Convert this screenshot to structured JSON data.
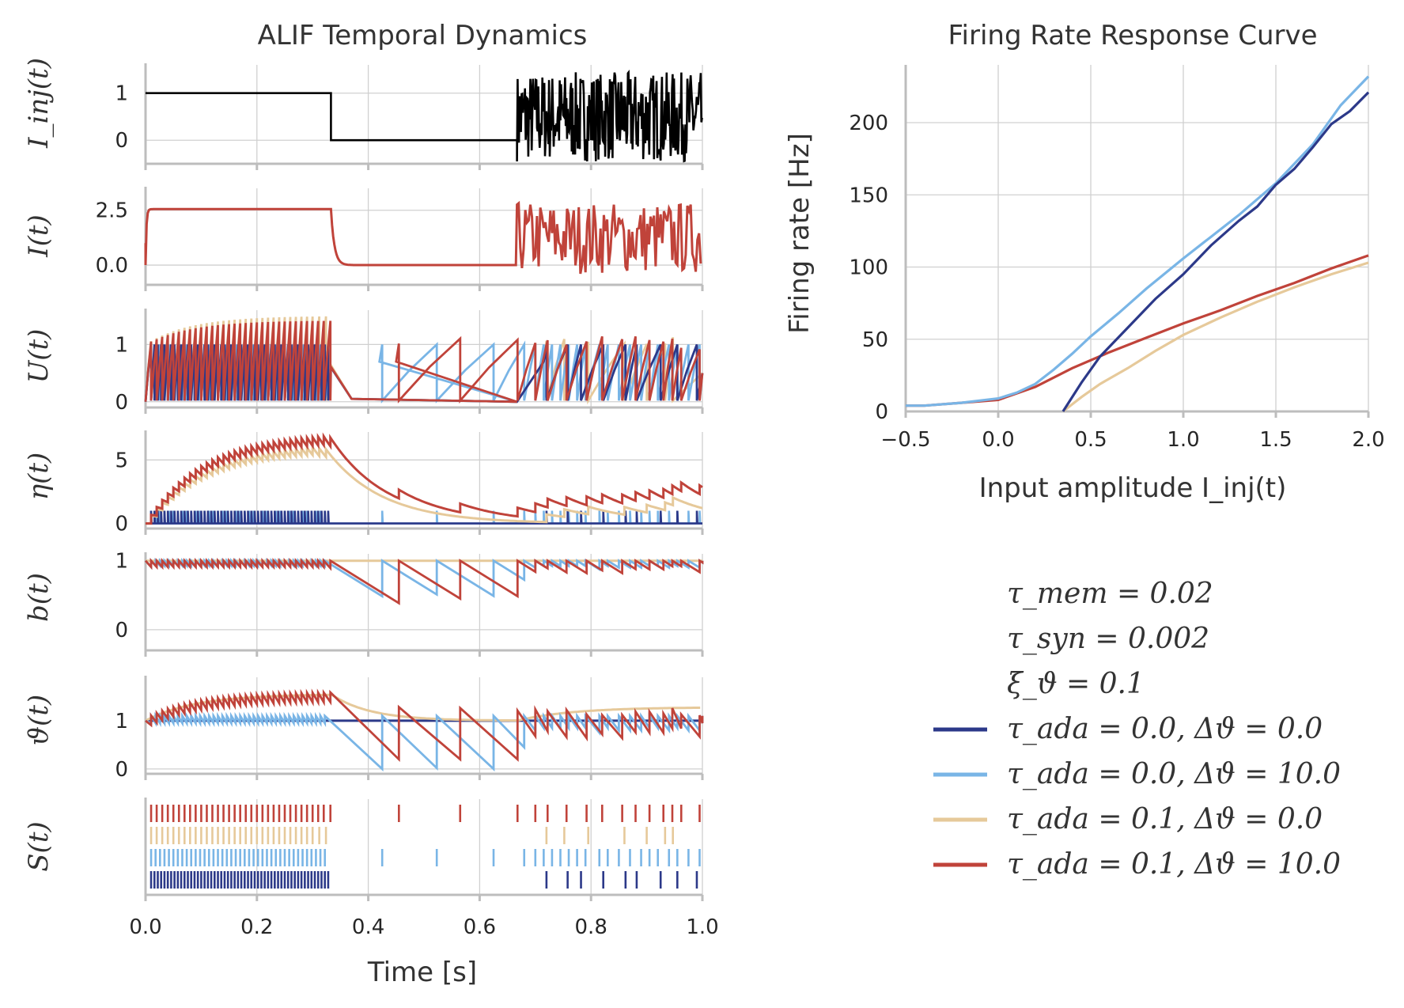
{
  "colors": {
    "blue_dark": "#2c3989",
    "blue_light": "#79b5e6",
    "tan": "#e6c99a",
    "red": "#c0433a",
    "black": "#000000"
  },
  "chart_data": [
    {
      "type": "line",
      "id": "temporal",
      "title": "ALIF Temporal Dynamics",
      "xlabel": "Time [s]",
      "xlim": [
        0.0,
        1.0
      ],
      "xticks": [
        "0.0",
        "0.2",
        "0.4",
        "0.6",
        "0.8",
        "1.0"
      ],
      "panels": [
        {
          "ylabel": "I_inj(t)",
          "ylim": [
            -0.5,
            1.6
          ],
          "yticks": [
            0,
            1
          ],
          "yticklabels": [
            "0",
            "1"
          ]
        },
        {
          "ylabel": "I(t)",
          "ylim": [
            -0.9,
            3.5
          ],
          "yticks": [
            0.0,
            2.5
          ],
          "yticklabels": [
            "0.0",
            "2.5"
          ]
        },
        {
          "ylabel": "U(t)",
          "ylim": [
            -0.1,
            1.6
          ],
          "yticks": [
            0,
            1
          ],
          "yticklabels": [
            "0",
            "1"
          ]
        },
        {
          "ylabel": "η(t)",
          "ylim": [
            -0.4,
            7.2
          ],
          "yticks": [
            0,
            5
          ],
          "yticklabels": [
            "0",
            "5"
          ]
        },
        {
          "ylabel": "b(t)",
          "ylim": [
            -0.3,
            1.1
          ],
          "yticks": [
            0,
            1
          ],
          "yticklabels": [
            "0",
            "1"
          ]
        },
        {
          "ylabel": "ϑ(t)",
          "ylim": [
            -0.1,
            1.9
          ],
          "yticks": [
            0,
            1
          ],
          "yticklabels": [
            "0",
            "1"
          ]
        },
        {
          "ylabel": "S(t)",
          "ylim": [
            0,
            1
          ],
          "yticks": [],
          "yticklabels": []
        }
      ],
      "input_segments": [
        {
          "t_start": 0.0,
          "t_end": 0.333,
          "kind": "constant",
          "value": 1.0
        },
        {
          "t_start": 0.333,
          "t_end": 0.667,
          "kind": "constant",
          "value": 0.0
        },
        {
          "t_start": 0.667,
          "t_end": 1.0,
          "kind": "noise",
          "value_range": [
            -0.45,
            1.45
          ]
        }
      ],
      "current_plateau": 2.55,
      "spike_trains": [
        {
          "series": "τ_ada = 0.1, Δϑ = 10.0",
          "times": [
            0.01,
            0.02,
            0.03,
            0.04,
            0.05,
            0.06,
            0.07,
            0.08,
            0.09,
            0.1,
            0.11,
            0.12,
            0.13,
            0.14,
            0.15,
            0.16,
            0.17,
            0.18,
            0.19,
            0.2,
            0.21,
            0.22,
            0.23,
            0.24,
            0.25,
            0.26,
            0.27,
            0.28,
            0.29,
            0.3,
            0.31,
            0.32,
            0.332,
            0.455,
            0.565,
            0.668,
            0.7,
            0.722,
            0.756,
            0.792,
            0.82,
            0.856,
            0.88,
            0.905,
            0.93,
            0.946,
            0.962,
            0.995
          ]
        },
        {
          "series": "τ_ada = 0.1, Δϑ = 0.0",
          "times": [
            0.01,
            0.02,
            0.03,
            0.04,
            0.05,
            0.06,
            0.07,
            0.08,
            0.09,
            0.1,
            0.11,
            0.12,
            0.13,
            0.14,
            0.15,
            0.16,
            0.17,
            0.18,
            0.19,
            0.2,
            0.21,
            0.22,
            0.23,
            0.24,
            0.25,
            0.26,
            0.27,
            0.28,
            0.29,
            0.3,
            0.312,
            0.324,
            0.72,
            0.752,
            0.795,
            0.86,
            0.9,
            0.933,
            0.947
          ]
        },
        {
          "series": "τ_ada = 0.0, Δϑ = 10.0",
          "times": [
            0.01,
            0.018,
            0.026,
            0.034,
            0.042,
            0.05,
            0.058,
            0.066,
            0.074,
            0.082,
            0.09,
            0.098,
            0.106,
            0.114,
            0.122,
            0.13,
            0.138,
            0.146,
            0.154,
            0.162,
            0.17,
            0.178,
            0.186,
            0.194,
            0.202,
            0.21,
            0.218,
            0.226,
            0.234,
            0.242,
            0.25,
            0.258,
            0.266,
            0.274,
            0.282,
            0.29,
            0.298,
            0.306,
            0.314,
            0.322,
            0.425,
            0.523,
            0.625,
            0.68,
            0.7,
            0.715,
            0.73,
            0.745,
            0.76,
            0.775,
            0.79,
            0.815,
            0.83,
            0.85,
            0.87,
            0.89,
            0.905,
            0.92,
            0.94,
            0.955,
            0.975,
            0.995
          ]
        },
        {
          "series": "τ_ada = 0.0, Δϑ = 0.0",
          "times": [
            0.01,
            0.016,
            0.022,
            0.028,
            0.034,
            0.04,
            0.046,
            0.052,
            0.058,
            0.064,
            0.07,
            0.076,
            0.082,
            0.088,
            0.094,
            0.1,
            0.106,
            0.112,
            0.118,
            0.124,
            0.13,
            0.136,
            0.142,
            0.148,
            0.154,
            0.16,
            0.166,
            0.172,
            0.178,
            0.184,
            0.19,
            0.196,
            0.202,
            0.208,
            0.214,
            0.22,
            0.226,
            0.232,
            0.238,
            0.244,
            0.25,
            0.256,
            0.262,
            0.268,
            0.274,
            0.28,
            0.286,
            0.292,
            0.298,
            0.304,
            0.31,
            0.316,
            0.322,
            0.328,
            0.72,
            0.758,
            0.782,
            0.822,
            0.862,
            0.882,
            0.925,
            0.955,
            0.99
          ]
        }
      ]
    },
    {
      "type": "line",
      "id": "rate",
      "title": "Firing Rate Response Curve",
      "xlabel": "Input amplitude I_inj(t)",
      "ylabel": "Firing rate [Hz]",
      "xlim": [
        -0.5,
        2.0
      ],
      "ylim": [
        0,
        240
      ],
      "xticks": [
        -0.5,
        0.0,
        0.5,
        1.0,
        1.5,
        2.0
      ],
      "xticklabels": [
        "−0.5",
        "0.0",
        "0.5",
        "1.0",
        "1.5",
        "2.0"
      ],
      "yticks": [
        0,
        50,
        100,
        150,
        200
      ],
      "yticklabels": [
        "0",
        "50",
        "100",
        "150",
        "200"
      ],
      "series": [
        {
          "name": "τ_ada = 0.0, Δϑ = 0.0",
          "color": "#2c3989",
          "x": [
            0.35,
            0.45,
            0.55,
            0.7,
            0.85,
            1.0,
            1.15,
            1.3,
            1.4,
            1.5,
            1.6,
            1.7,
            1.8,
            1.9,
            2.0
          ],
          "y": [
            0,
            20,
            38,
            58,
            78,
            95,
            115,
            132,
            142,
            157,
            168,
            183,
            199,
            208,
            221
          ]
        },
        {
          "name": "τ_ada = 0.0, Δϑ = 10.0",
          "color": "#79b5e6",
          "x": [
            -0.5,
            -0.4,
            -0.2,
            0.0,
            0.1,
            0.2,
            0.3,
            0.4,
            0.5,
            0.65,
            0.8,
            1.0,
            1.15,
            1.3,
            1.5,
            1.7,
            1.85,
            2.0
          ],
          "y": [
            4,
            4,
            6,
            9,
            13,
            19,
            29,
            40,
            52,
            68,
            85,
            106,
            121,
            136,
            158,
            185,
            212,
            232
          ]
        },
        {
          "name": "τ_ada = 0.1, Δϑ = 0.0",
          "color": "#e6c99a",
          "x": [
            0.35,
            0.45,
            0.55,
            0.7,
            0.85,
            1.0,
            1.2,
            1.4,
            1.6,
            1.8,
            2.0
          ],
          "y": [
            0,
            10,
            19,
            30,
            42,
            53,
            65,
            76,
            86,
            95,
            103
          ]
        },
        {
          "name": "τ_ada = 0.1, Δϑ = 10.0",
          "color": "#c0433a",
          "x": [
            -0.5,
            -0.4,
            -0.2,
            0.0,
            0.2,
            0.4,
            0.6,
            0.8,
            1.0,
            1.2,
            1.4,
            1.6,
            1.8,
            2.0
          ],
          "y": [
            4,
            4,
            6,
            8,
            17,
            30,
            41,
            51,
            61,
            70,
            80,
            89,
            99,
            108
          ]
        }
      ]
    }
  ],
  "legend": {
    "params": [
      "τ_mem = 0.02",
      "τ_syn = 0.002",
      "ξ_ϑ = 0.1"
    ],
    "entries": [
      {
        "label": "τ_ada = 0.0, Δϑ = 0.0",
        "color": "#2c3989"
      },
      {
        "label": "τ_ada = 0.0, Δϑ = 10.0",
        "color": "#79b5e6"
      },
      {
        "label": "τ_ada = 0.1, Δϑ = 0.0",
        "color": "#e6c99a"
      },
      {
        "label": "τ_ada = 0.1, Δϑ = 10.0",
        "color": "#c0433a"
      }
    ]
  }
}
